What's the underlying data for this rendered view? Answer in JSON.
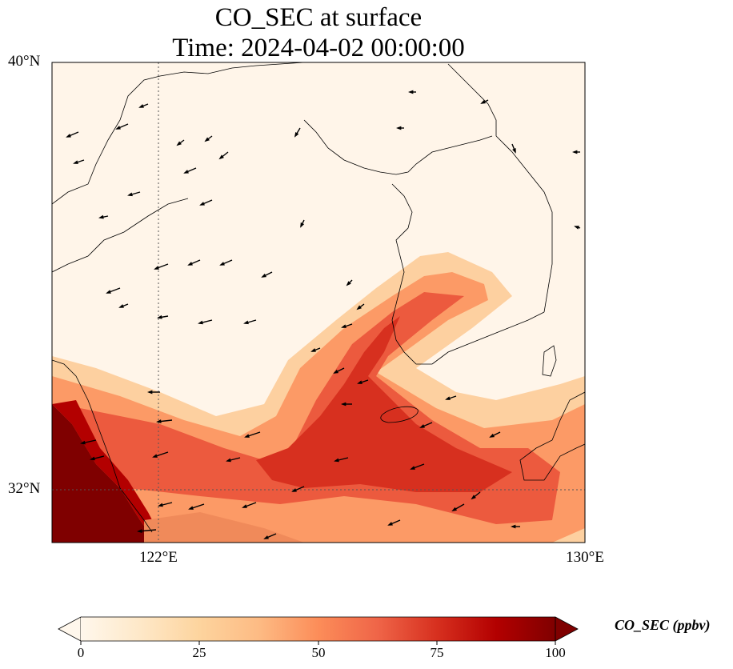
{
  "title_line1": "CO_SEC at surface",
  "title_line2": "Time: 2024-04-02 00:00:00",
  "map": {
    "lat_labels": [
      "40°N",
      "32°N"
    ],
    "lon_labels": [
      "122°E",
      "130°E"
    ],
    "lon_range": [
      120,
      130
    ],
    "lat_range": [
      31,
      40
    ],
    "gridlines": {
      "lon": [
        122
      ],
      "lat": [
        32
      ]
    },
    "colormap": "OrRd",
    "variable": "CO_SEC",
    "units": "ppbv",
    "wind_vectors": true
  },
  "colorbar": {
    "label": "CO_SEC (ppbv)",
    "ticks": [
      "0",
      "25",
      "50",
      "75",
      "100"
    ],
    "min": 0,
    "max": 100,
    "extend": "both",
    "colors": [
      "#fff7ec",
      "#fee8c8",
      "#fdd49e",
      "#fdbb84",
      "#fc8d59",
      "#ef6548",
      "#d7301f",
      "#b30000",
      "#7f0000"
    ]
  }
}
